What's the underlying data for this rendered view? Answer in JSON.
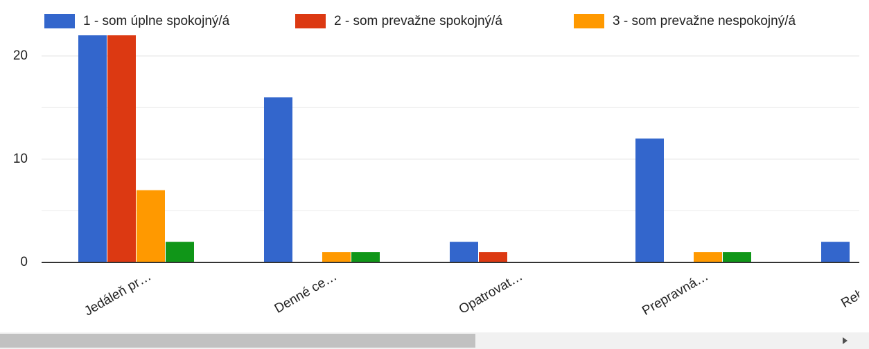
{
  "chart_data": {
    "type": "bar",
    "categories": [
      "Jedáleň pr…",
      "Denné ce…",
      "Opatrovat…",
      "Prepravná…",
      "Rehabilita"
    ],
    "series": [
      {
        "name": "1 - som úplne spokojný/á",
        "color": "#3366cc",
        "values": [
          22,
          16,
          2,
          12,
          2
        ]
      },
      {
        "name": "2 - som prevažne spokojný/á",
        "color": "#dc3912",
        "values": [
          22,
          0,
          1,
          0,
          null
        ]
      },
      {
        "name": "3 - som prevažne nespokojný/á",
        "color": "#ff9900",
        "values": [
          7,
          1,
          0,
          1,
          null
        ]
      },
      {
        "color": "#109618",
        "values": [
          2,
          1,
          0,
          1,
          null
        ]
      }
    ],
    "ylim": [
      0,
      22
    ],
    "yticks": [
      0,
      10,
      20
    ],
    "minor_gridlines": [
      5,
      15
    ],
    "grid": true,
    "legend": "top"
  }
}
